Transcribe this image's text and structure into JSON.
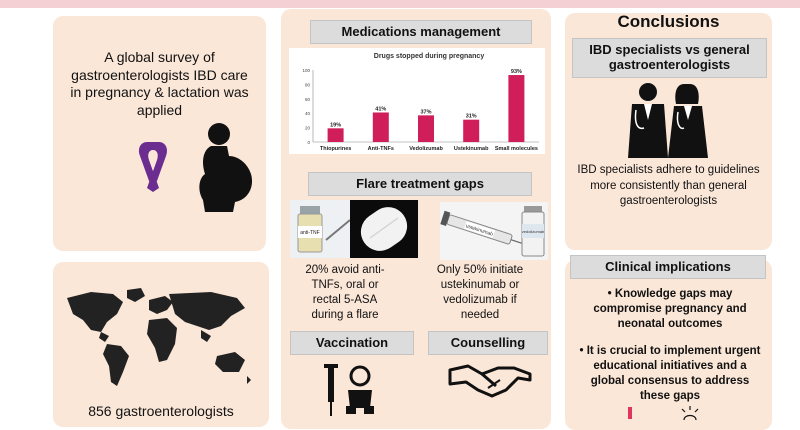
{
  "left": {
    "survey_text": "A global survey of gastroenterologists IBD care in pregnancy & lactation was applied",
    "count_text": "856 gastroenterologists"
  },
  "middle": {
    "med_title": "Medications management",
    "chart_data": {
      "type": "bar",
      "title": "Drugs stopped during pregnancy",
      "categories": [
        "Thiopurines",
        "Anti-TNFs",
        "Vedolizumab",
        "Ustekinumab",
        "Small molecules"
      ],
      "values": [
        19,
        41,
        37,
        31,
        93
      ],
      "value_labels": [
        "19%",
        "41%",
        "37%",
        "31%",
        "93%"
      ],
      "ylim": [
        0,
        100
      ],
      "yticks": [
        0,
        20,
        40,
        60,
        80,
        100
      ],
      "bar_color": "#d01e5a"
    },
    "flare_title": "Flare treatment gaps",
    "flare_left_text": "20% avoid anti-TNFs, oral or rectal 5-ASA during a flare",
    "flare_right_text": "Only 50% initiate ustekinumab or vedolizumab if needed",
    "vial_label": "anti-TNF",
    "syringe_label": "ustekinumab",
    "vial2_label": "vedolizumab",
    "vacc_title": "Vaccination",
    "couns_title": "Counselling"
  },
  "right": {
    "conclusions_title": "Conclusions",
    "spec_title": "IBD specialists vs general gastroenterologists",
    "spec_text": "IBD specialists adhere to guidelines more consistently than general gastroenterologists",
    "clin_title": "Clinical implications",
    "bullet1": "Knowledge gaps may compromise pregnancy and neonatal outcomes",
    "bullet2": "It is crucial to implement urgent educational initiatives and a global consensus to address these gaps"
  }
}
